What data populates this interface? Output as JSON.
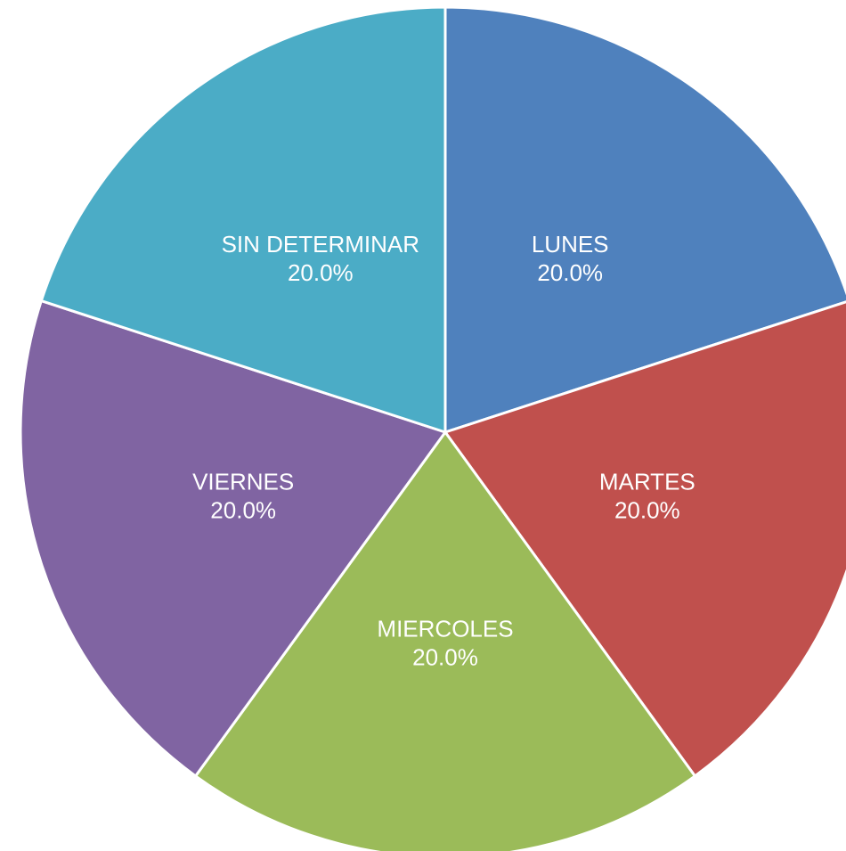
{
  "chart_data": {
    "type": "pie",
    "categories": [
      "LUNES",
      "MARTES",
      "MIERCOLES",
      "VIERNES",
      "SIN DETERMINAR"
    ],
    "values": [
      20.0,
      20.0,
      20.0,
      20.0,
      20.0
    ],
    "value_labels": [
      "20.0%",
      "20.0%",
      "20.0%",
      "20.0%",
      "20.0%"
    ],
    "colors": [
      "#4f81bd",
      "#c0504d",
      "#9bbb59",
      "#8064a2",
      "#4bacc6"
    ]
  }
}
